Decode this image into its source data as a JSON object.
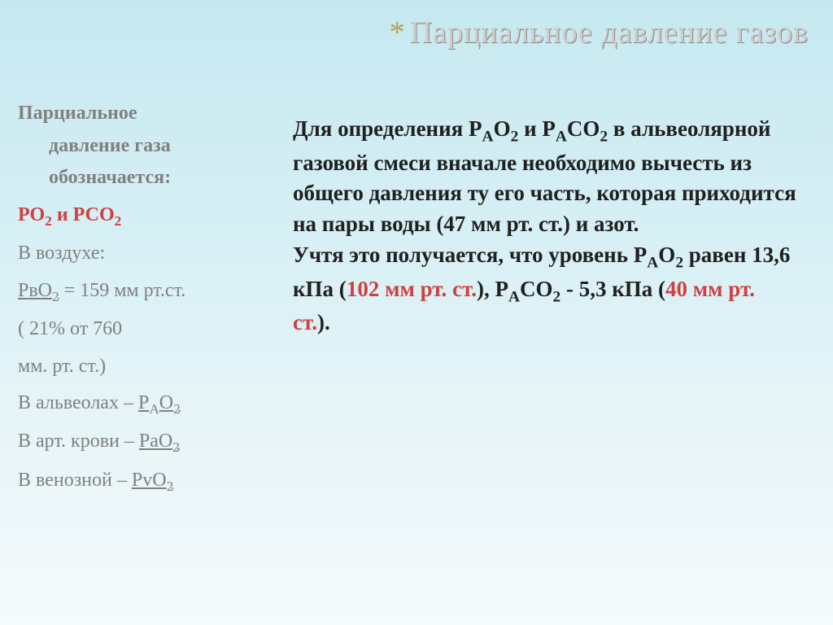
{
  "title": {
    "star": "*",
    "text": "Парциальное давление газов"
  },
  "left": {
    "heading_l1": "Парциальное",
    "heading_l2": "давление газа",
    "heading_l3": "обозначается:",
    "po1": "РО",
    "po_sub": "2",
    "po_and": "  и  ",
    "pco": "РСО",
    "pco_sub": "2",
    "air_label": "В воздухе:",
    "pbo_u": "РвО",
    "pbo_sub": "2",
    "pbo_rest": " = 159 мм рт.ст.",
    "pct_l1": "( 21% от 760",
    "pct_l2": "мм. рт. ст.)",
    "alv_pre": "В альвеолах – ",
    "alv_u": "Р",
    "alv_a": "А",
    "alv_o": "О",
    "alv_sub": "2",
    "art_pre": "В арт.  крови – ",
    "art_u1": "РаО",
    "art_sub": "2",
    "ven_pre": "В венозной – ",
    "ven_u": "РvО",
    "ven_sub": "2"
  },
  "right": {
    "p1_a": "Для определения Р",
    "p1_b": "А",
    "p1_c": "О",
    "p1_d": "2",
    "p1_e": " и Р",
    "p1_f": "А",
    "p1_g": "СО",
    "p1_h": "2",
    "p1_i": " в альвеолярной газовой смеси вначале необходимо вычесть из общего давления ту его часть, которая приходится на пары воды (47 мм рт. ст.) и азот.",
    "p2_a": "Учтя это получается, что уровень Р",
    "p2_b": "А",
    "p2_c": "О",
    "p2_d": "2",
    "p2_e": " равен 13,6 кПа (",
    "p2_f": "102 мм рт. ст.",
    "p2_g": "), Р",
    "p2_h": "А",
    "p2_i": "СО",
    "p2_j": "2",
    "p2_k": " - 5,3 кПа (",
    "p2_l": "40 мм рт. ст.",
    "p2_m": ")."
  }
}
